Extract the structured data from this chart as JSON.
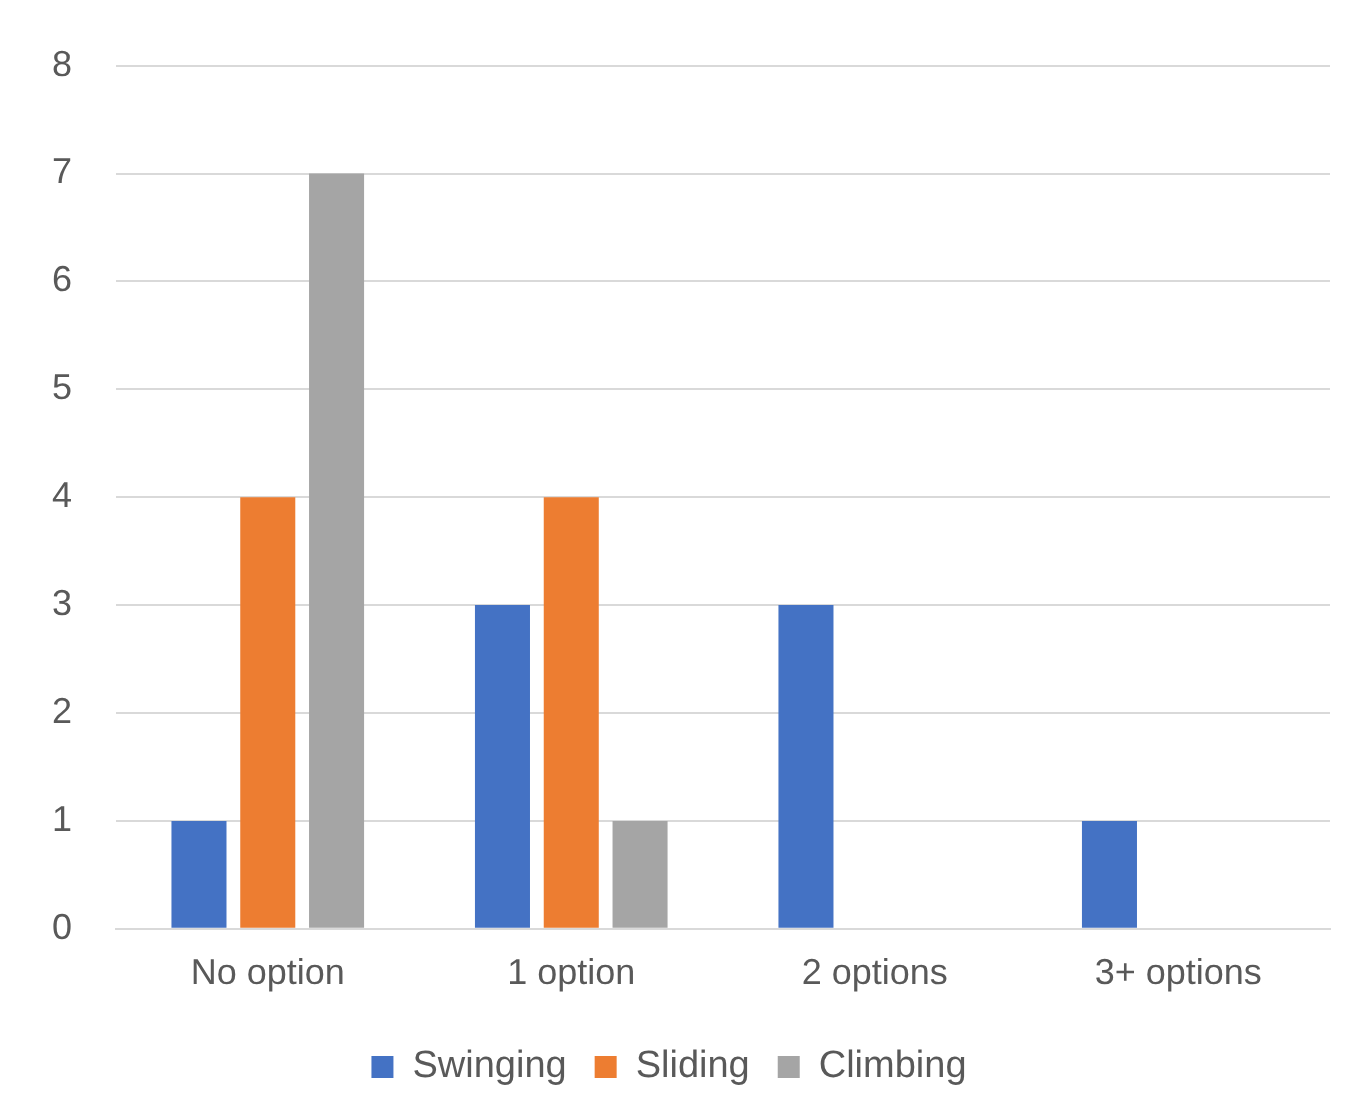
{
  "chart_data": {
    "type": "bar",
    "categories": [
      "No option",
      "1 option",
      "2 options",
      "3+ options"
    ],
    "series": [
      {
        "name": "Swinging",
        "color": "#4472c4",
        "values": [
          1,
          3,
          3,
          1
        ]
      },
      {
        "name": "Sliding",
        "color": "#ed7d31",
        "values": [
          4,
          4,
          0,
          0
        ]
      },
      {
        "name": "Climbing",
        "color": "#a5a5a5",
        "values": [
          7,
          1,
          0,
          0
        ]
      }
    ],
    "ylim": [
      0,
      8
    ],
    "yticks": [
      0,
      1,
      2,
      3,
      4,
      5,
      6,
      7,
      8
    ],
    "grid": "y",
    "legend": "bottom"
  }
}
